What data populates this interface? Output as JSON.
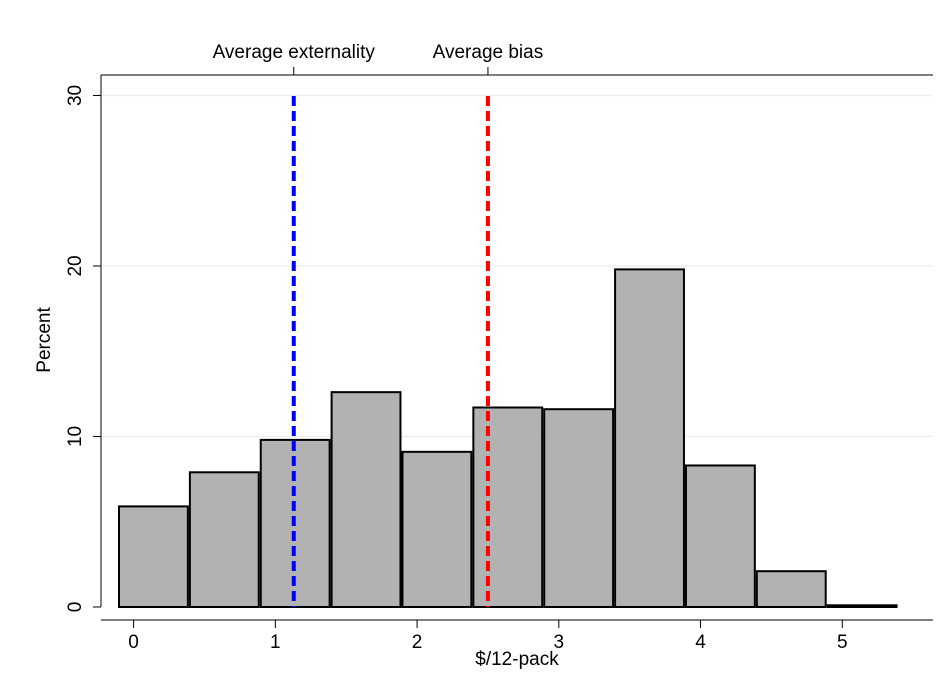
{
  "chart_data": {
    "type": "histogram",
    "x_label": "$/12-pack",
    "y_label": "Percent",
    "bins": [
      -0.11,
      0.39,
      0.89,
      1.39,
      1.89,
      2.39,
      2.89,
      3.39,
      3.89,
      4.39,
      4.89,
      5.39
    ],
    "values": [
      5.9,
      7.9,
      9.8,
      12.6,
      9.1,
      11.7,
      11.6,
      19.8,
      8.3,
      2.1,
      0.1
    ],
    "color": "#b2b2b2",
    "xlim": [
      -0.23,
      5.64
    ],
    "xticks": [
      0,
      1,
      2,
      3,
      4,
      5
    ],
    "ylim": [
      0,
      31.2
    ],
    "yticks": [
      0,
      10,
      20,
      30
    ],
    "grid": true,
    "reference_lines": [
      {
        "value": 1.13,
        "label": "Average externality",
        "color": "#0000ff"
      },
      {
        "value": 2.5,
        "label": "Average bias",
        "color": "#ff0000"
      }
    ]
  }
}
